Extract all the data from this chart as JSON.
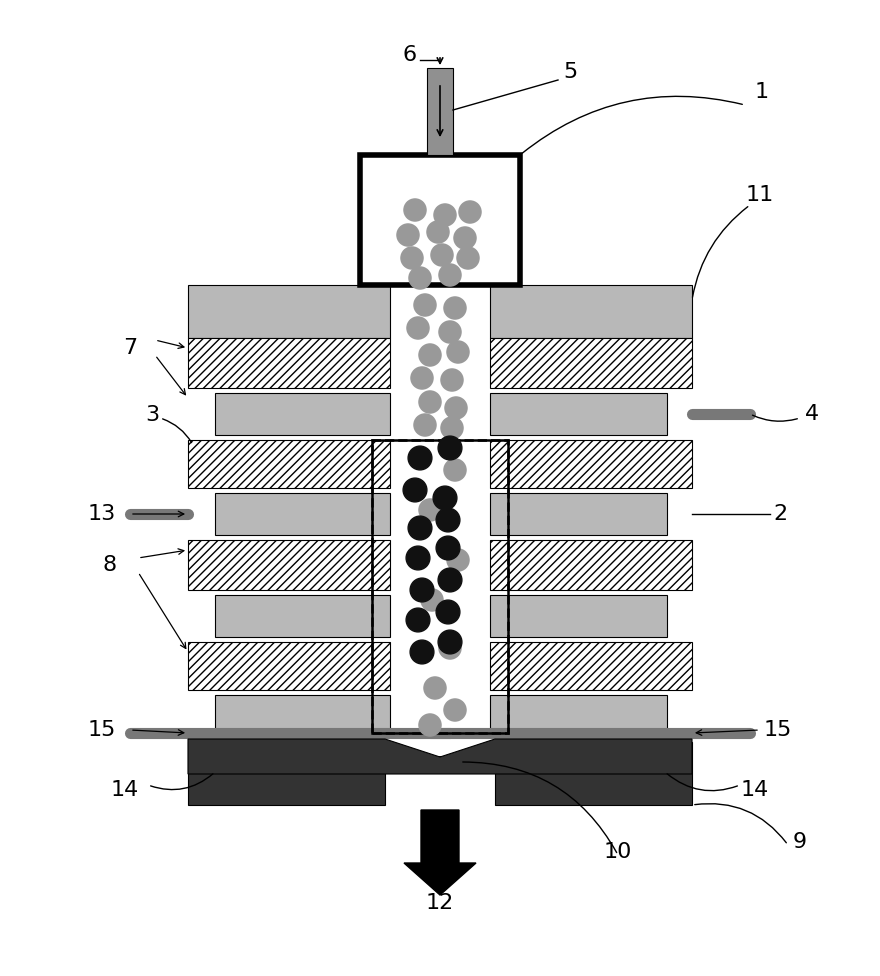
{
  "fig_width": 8.8,
  "fig_height": 9.76,
  "bg_color": "#ffffff",
  "gray_fill": "#b8b8b8",
  "dark_fill": "#333333",
  "medium_gray": "#909090",
  "rod_color": "#808080",
  "dot_gray": "#999999",
  "dot_black": "#111111",
  "hatch_pattern": "////",
  "label_fs": 16
}
